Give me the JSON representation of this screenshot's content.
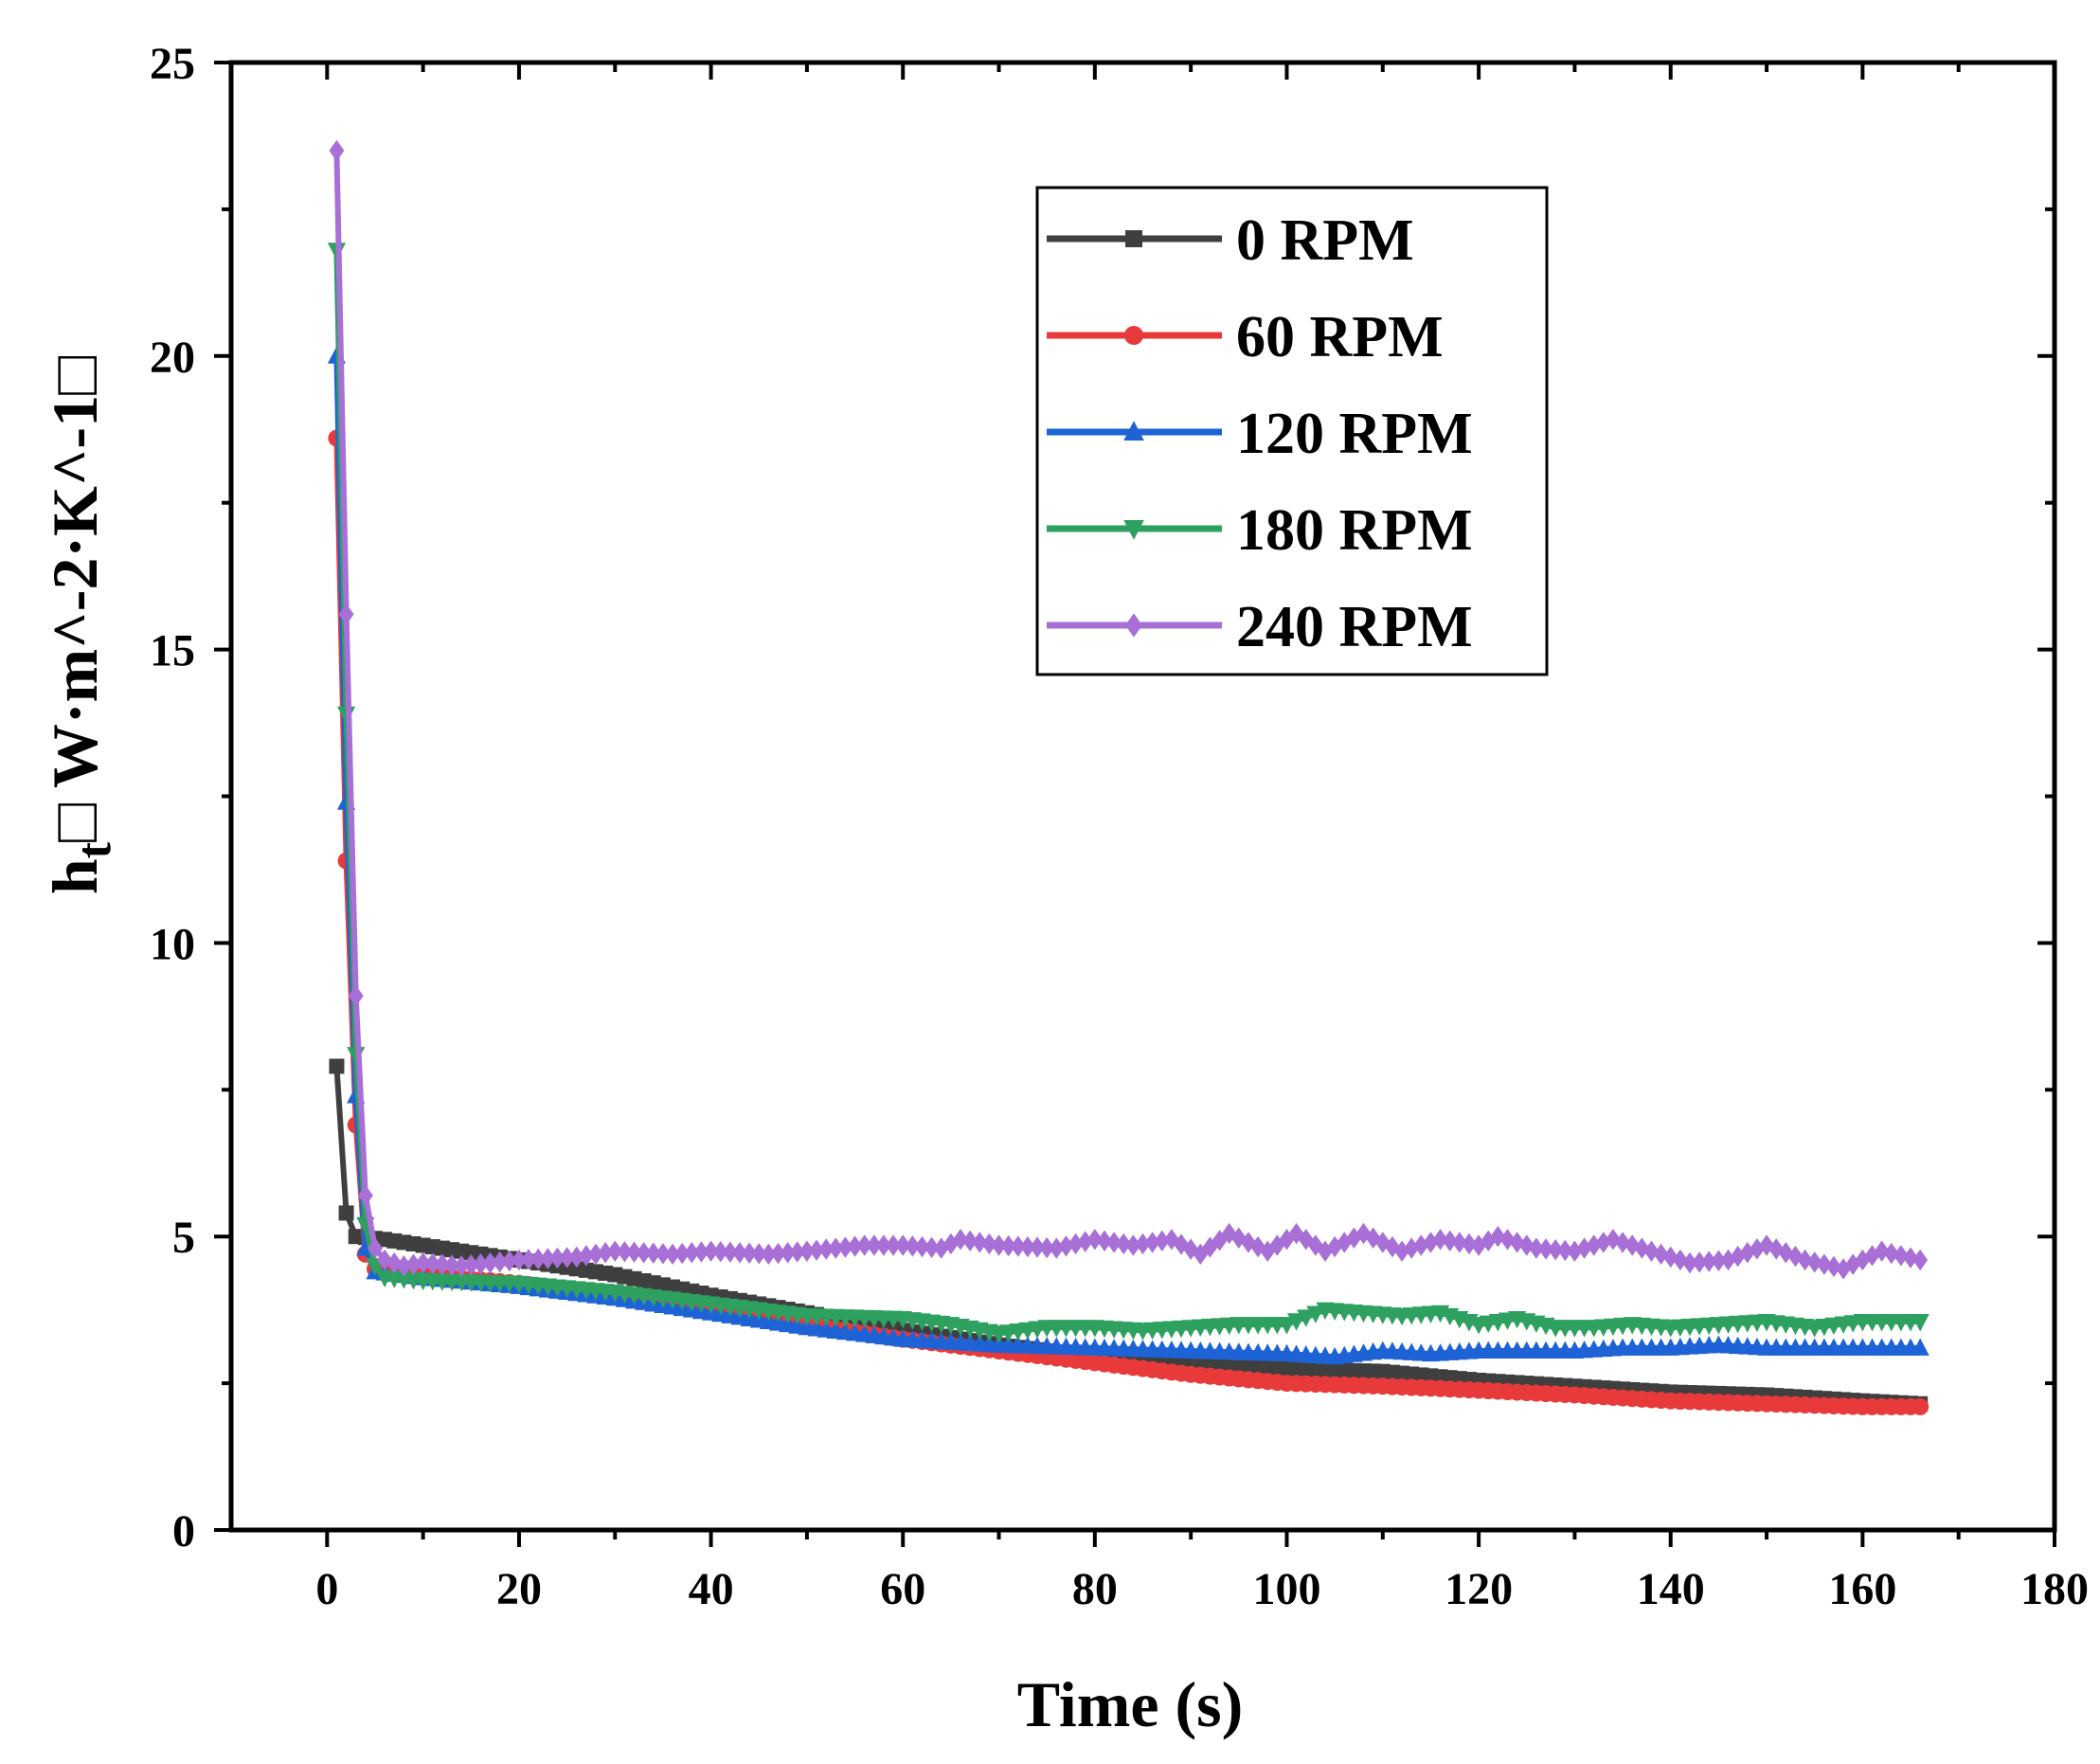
{
  "chart_data": {
    "type": "line",
    "title": "",
    "xlabel": "Time (s)",
    "ylabel": {
      "main": "h",
      "sub": "t",
      "rest": "□ W·m^-2·K^-1□"
    },
    "xlim": [
      -10,
      180
    ],
    "ylim": [
      0,
      25
    ],
    "x_ticks": [
      0,
      20,
      40,
      60,
      80,
      100,
      120,
      140,
      160,
      180
    ],
    "x_tick_labels": [
      "0",
      "20",
      "40",
      "60",
      "80",
      "100",
      "120",
      "140",
      "160",
      "180"
    ],
    "y_ticks": [
      0,
      5,
      10,
      15,
      20,
      25
    ],
    "y_tick_labels": [
      "0",
      "5",
      "10",
      "15",
      "20",
      "25"
    ],
    "legend_position": "top-right",
    "series": [
      {
        "name": "0 RPM",
        "color": "#3f3f3f",
        "marker": "square",
        "points": [
          [
            1,
            7.9
          ],
          [
            2,
            5.4
          ],
          [
            3,
            5.0
          ],
          [
            6,
            4.95
          ],
          [
            10,
            4.85
          ],
          [
            20,
            4.6
          ],
          [
            30,
            4.35
          ],
          [
            40,
            4.0
          ],
          [
            50,
            3.7
          ],
          [
            60,
            3.4
          ],
          [
            70,
            3.15
          ],
          [
            80,
            2.95
          ],
          [
            90,
            2.8
          ],
          [
            100,
            2.75
          ],
          [
            110,
            2.7
          ],
          [
            120,
            2.55
          ],
          [
            130,
            2.45
          ],
          [
            140,
            2.35
          ],
          [
            150,
            2.3
          ],
          [
            160,
            2.2
          ],
          [
            166,
            2.15
          ]
        ]
      },
      {
        "name": "60 RPM",
        "color": "#e83a3a",
        "marker": "circle",
        "points": [
          [
            1,
            18.6
          ],
          [
            2,
            11.4
          ],
          [
            3,
            6.9
          ],
          [
            4,
            4.7
          ],
          [
            5,
            4.45
          ],
          [
            10,
            4.35
          ],
          [
            20,
            4.2
          ],
          [
            30,
            4.0
          ],
          [
            40,
            3.75
          ],
          [
            50,
            3.5
          ],
          [
            60,
            3.25
          ],
          [
            70,
            3.05
          ],
          [
            80,
            2.85
          ],
          [
            90,
            2.65
          ],
          [
            100,
            2.5
          ],
          [
            110,
            2.45
          ],
          [
            120,
            2.38
          ],
          [
            130,
            2.3
          ],
          [
            140,
            2.2
          ],
          [
            150,
            2.15
          ],
          [
            160,
            2.1
          ],
          [
            166,
            2.1
          ]
        ]
      },
      {
        "name": "120 RPM",
        "color": "#1e63d6",
        "marker": "triangle-up",
        "points": [
          [
            1,
            20.0
          ],
          [
            2,
            12.4
          ],
          [
            3,
            7.4
          ],
          [
            4,
            4.8
          ],
          [
            5,
            4.4
          ],
          [
            10,
            4.3
          ],
          [
            20,
            4.15
          ],
          [
            30,
            3.95
          ],
          [
            40,
            3.7
          ],
          [
            50,
            3.45
          ],
          [
            60,
            3.25
          ],
          [
            70,
            3.15
          ],
          [
            80,
            3.1
          ],
          [
            90,
            3.05
          ],
          [
            100,
            3.0
          ],
          [
            105,
            2.95
          ],
          [
            110,
            3.05
          ],
          [
            115,
            3.0
          ],
          [
            120,
            3.05
          ],
          [
            125,
            3.05
          ],
          [
            130,
            3.05
          ],
          [
            135,
            3.1
          ],
          [
            140,
            3.1
          ],
          [
            145,
            3.15
          ],
          [
            150,
            3.1
          ],
          [
            155,
            3.1
          ],
          [
            160,
            3.1
          ],
          [
            166,
            3.1
          ]
        ]
      },
      {
        "name": "180 RPM",
        "color": "#2ea060",
        "marker": "triangle-down",
        "points": [
          [
            1,
            21.8
          ],
          [
            2,
            13.9
          ],
          [
            3,
            8.1
          ],
          [
            4,
            5.2
          ],
          [
            5,
            4.5
          ],
          [
            6,
            4.3
          ],
          [
            10,
            4.25
          ],
          [
            20,
            4.2
          ],
          [
            30,
            4.05
          ],
          [
            40,
            3.85
          ],
          [
            50,
            3.65
          ],
          [
            60,
            3.6
          ],
          [
            65,
            3.5
          ],
          [
            70,
            3.35
          ],
          [
            75,
            3.45
          ],
          [
            80,
            3.45
          ],
          [
            85,
            3.4
          ],
          [
            90,
            3.45
          ],
          [
            95,
            3.5
          ],
          [
            100,
            3.5
          ],
          [
            104,
            3.75
          ],
          [
            108,
            3.7
          ],
          [
            112,
            3.65
          ],
          [
            116,
            3.7
          ],
          [
            120,
            3.5
          ],
          [
            124,
            3.6
          ],
          [
            128,
            3.45
          ],
          [
            132,
            3.45
          ],
          [
            136,
            3.5
          ],
          [
            140,
            3.45
          ],
          [
            145,
            3.5
          ],
          [
            150,
            3.55
          ],
          [
            155,
            3.45
          ],
          [
            160,
            3.55
          ],
          [
            166,
            3.55
          ]
        ]
      },
      {
        "name": "240 RPM",
        "color": "#a86fd6",
        "marker": "diamond",
        "points": [
          [
            1,
            23.5
          ],
          [
            2,
            15.6
          ],
          [
            3,
            9.1
          ],
          [
            4,
            5.7
          ],
          [
            5,
            4.8
          ],
          [
            6,
            4.6
          ],
          [
            8,
            4.5
          ],
          [
            10,
            4.55
          ],
          [
            14,
            4.5
          ],
          [
            20,
            4.6
          ],
          [
            26,
            4.65
          ],
          [
            30,
            4.75
          ],
          [
            36,
            4.7
          ],
          [
            40,
            4.75
          ],
          [
            46,
            4.7
          ],
          [
            50,
            4.75
          ],
          [
            56,
            4.85
          ],
          [
            60,
            4.85
          ],
          [
            64,
            4.8
          ],
          [
            66,
            4.95
          ],
          [
            70,
            4.85
          ],
          [
            76,
            4.8
          ],
          [
            80,
            4.95
          ],
          [
            84,
            4.85
          ],
          [
            88,
            4.95
          ],
          [
            91,
            4.7
          ],
          [
            94,
            5.05
          ],
          [
            98,
            4.75
          ],
          [
            101,
            5.05
          ],
          [
            104,
            4.75
          ],
          [
            108,
            5.05
          ],
          [
            112,
            4.75
          ],
          [
            116,
            4.95
          ],
          [
            120,
            4.85
          ],
          [
            122,
            5.0
          ],
          [
            126,
            4.8
          ],
          [
            130,
            4.75
          ],
          [
            134,
            4.95
          ],
          [
            138,
            4.75
          ],
          [
            142,
            4.55
          ],
          [
            146,
            4.6
          ],
          [
            150,
            4.85
          ],
          [
            154,
            4.6
          ],
          [
            158,
            4.45
          ],
          [
            162,
            4.75
          ],
          [
            166,
            4.6
          ]
        ]
      }
    ]
  }
}
